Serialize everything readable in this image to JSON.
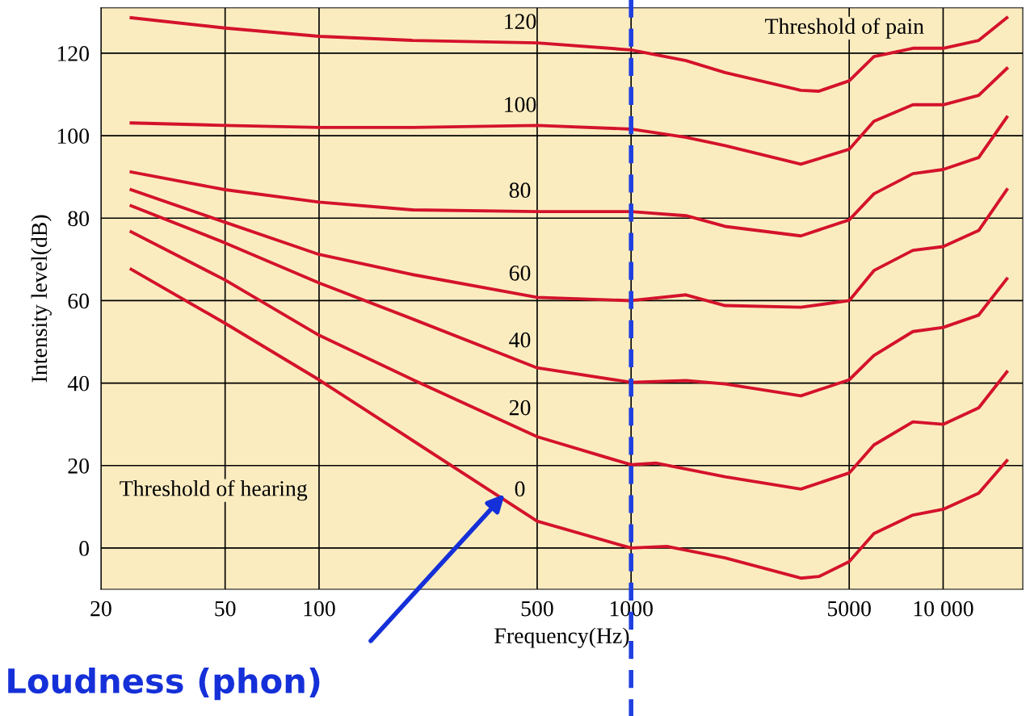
{
  "chart_data": {
    "type": "line",
    "xlabel": "Frequency(Hz)",
    "ylabel": "Intensity level(dB)",
    "log": "x",
    "grid": true,
    "marker": "none",
    "line_style": "solid",
    "xlim": [
      20,
      18000
    ],
    "ylim": [
      -10,
      131
    ],
    "xticks": [
      20,
      50,
      100,
      500,
      1000,
      5000,
      {
        "value": 10000,
        "label": "10 000"
      }
    ],
    "yticks": [
      0,
      20,
      40,
      60,
      80,
      100,
      120
    ],
    "series": [
      {
        "name": "0",
        "color": "#d4132b",
        "x": [
          25,
          50,
          100,
          500,
          1000,
          1300,
          2000,
          3500,
          4000,
          5000,
          6000,
          8000,
          10000,
          13000,
          16000
        ],
        "values": [
          67.6,
          54.5,
          40.8,
          6.5,
          0,
          0.4,
          -2.4,
          -7.3,
          -6.9,
          -3.3,
          3.5,
          8,
          9.4,
          13.3,
          21.2
        ]
      },
      {
        "name": "20",
        "color": "#d4132b",
        "x": [
          25,
          50,
          100,
          200,
          500,
          1000,
          1200,
          2000,
          3500,
          5000,
          6000,
          8000,
          10000,
          13000,
          16000
        ],
        "values": [
          76.7,
          65,
          51.6,
          40.8,
          27,
          20.2,
          20.6,
          17.3,
          14.3,
          18.2,
          25,
          30.6,
          30,
          34,
          42.7
        ]
      },
      {
        "name": "40",
        "color": "#d4132b",
        "x": [
          25,
          50,
          100,
          200,
          500,
          1000,
          1500,
          2000,
          3500,
          5000,
          6000,
          8000,
          10000,
          13000,
          16000
        ],
        "values": [
          83,
          74,
          64.3,
          55.5,
          43.7,
          40.2,
          40.6,
          39.8,
          36.9,
          40.8,
          46.7,
          52.5,
          53.5,
          56.5,
          65.3
        ]
      },
      {
        "name": "60",
        "color": "#d4132b",
        "x": [
          25,
          50,
          100,
          200,
          500,
          1000,
          1500,
          2000,
          3500,
          5000,
          6000,
          8000,
          10000,
          13000,
          16000
        ],
        "values": [
          86.9,
          79,
          71.2,
          66.3,
          60.8,
          60,
          61.4,
          58.8,
          58.4,
          60,
          67.3,
          72.2,
          73.1,
          77,
          86.9
        ]
      },
      {
        "name": "80",
        "color": "#d4132b",
        "x": [
          25,
          50,
          100,
          200,
          500,
          1000,
          1500,
          2000,
          3500,
          5000,
          6000,
          8000,
          10000,
          13000,
          16000
        ],
        "values": [
          91.2,
          86.9,
          83.9,
          82,
          81.6,
          81.6,
          80.6,
          78,
          75.7,
          79.6,
          85.9,
          90.8,
          91.8,
          94.7,
          104.5
        ]
      },
      {
        "name": "100",
        "color": "#d4132b",
        "x": [
          25,
          50,
          100,
          200,
          500,
          1000,
          1500,
          2000,
          3500,
          5000,
          6000,
          8000,
          10000,
          13000,
          16000
        ],
        "values": [
          103.1,
          102.5,
          102,
          102,
          102.5,
          101.6,
          99.6,
          97.6,
          93.1,
          96.7,
          103.5,
          107.5,
          107.5,
          109.8,
          116.3
        ]
      },
      {
        "name": "120",
        "color": "#d4132b",
        "x": [
          25,
          50,
          100,
          200,
          500,
          1000,
          1500,
          2000,
          3500,
          4000,
          5000,
          6000,
          8000,
          10000,
          13000,
          16000
        ],
        "values": [
          128.6,
          126.1,
          124.1,
          123.1,
          122.5,
          120.8,
          118.2,
          115.3,
          111,
          110.8,
          113.3,
          119.2,
          121.2,
          121.2,
          123.1,
          128.6
        ]
      }
    ],
    "ref_lines": [
      {
        "axis": "x",
        "value": 1000,
        "label": null,
        "color": "#1f3fe0",
        "line_style": "dashed"
      }
    ],
    "annotations": [
      "Threshold of pain",
      "Threshold of hearing",
      "Loudness (phon)"
    ]
  }
}
